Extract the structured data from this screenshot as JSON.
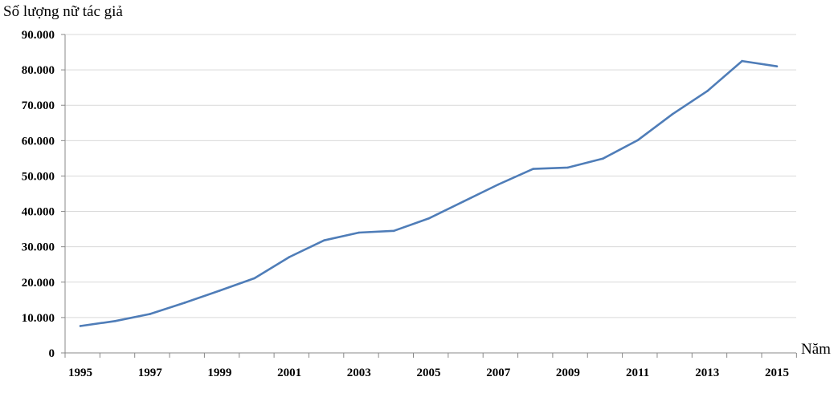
{
  "chart_data": {
    "type": "line",
    "ylabel": "Số lượng nữ tác giả",
    "xlabel": "Năm",
    "x": [
      1995,
      1996,
      1997,
      1998,
      1999,
      2000,
      2001,
      2002,
      2003,
      2004,
      2005,
      2006,
      2007,
      2008,
      2009,
      2010,
      2011,
      2012,
      2013,
      2014,
      2015
    ],
    "series": [
      {
        "values": [
          7600,
          9000,
          11000,
          14200,
          17600,
          21100,
          27100,
          31800,
          34000,
          34500,
          38000,
          42800,
          47600,
          52000,
          52400,
          54900,
          60100,
          67500,
          74000,
          82500,
          81000
        ],
        "color": "#4f7db8"
      }
    ],
    "ylim": [
      0,
      90000
    ],
    "yticks": [
      "0",
      "10.000",
      "20.000",
      "30.000",
      "40.000",
      "50.000",
      "60.000",
      "70.000",
      "80.000",
      "90.000"
    ],
    "xticks": [
      "1995",
      "1997",
      "1999",
      "2001",
      "2003",
      "2005",
      "2007",
      "2009",
      "2011",
      "2013",
      "2015"
    ],
    "grid": true,
    "gridColor": "#d9d9d9",
    "axisColor": "#888888"
  }
}
